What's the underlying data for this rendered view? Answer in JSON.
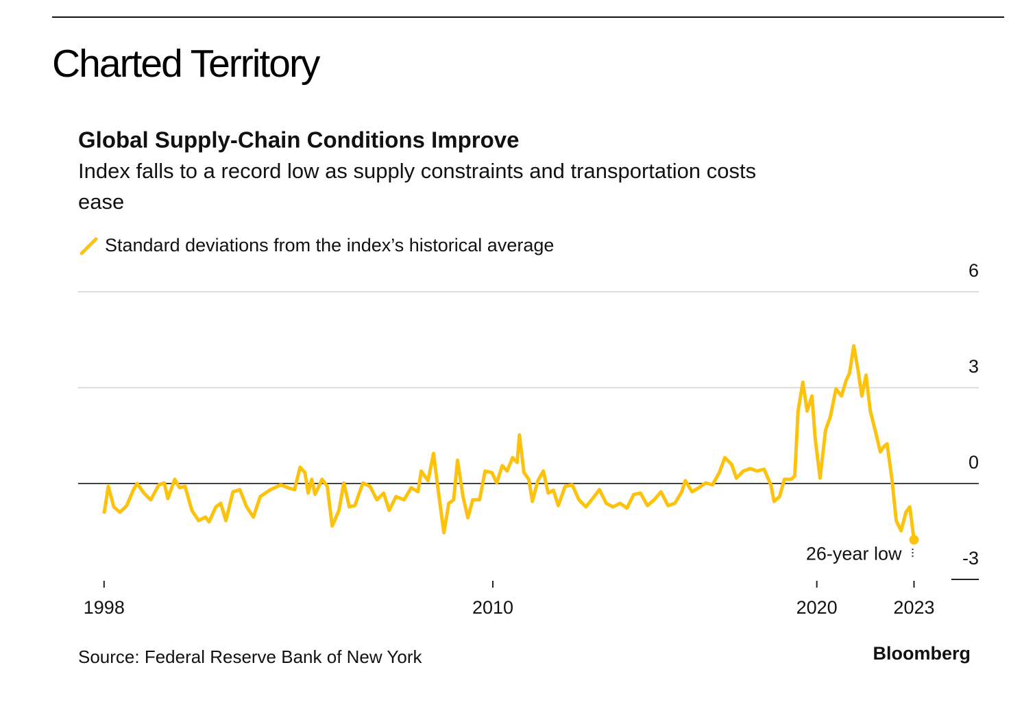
{
  "header": {
    "title": "Charted Territory"
  },
  "chart_data": {
    "type": "line",
    "title": "Global Supply-Chain Conditions Improve",
    "subtitle": [
      "Index falls to a record low as supply constraints and transportation costs",
      "ease"
    ],
    "source": "Source: Federal Reserve Bank of New York",
    "brand": "Bloomberg",
    "annotation": "26-year low",
    "xlim": [
      1997.2,
      2025
    ],
    "xticks": [
      1998,
      2010,
      2020,
      2023
    ],
    "ylim": [
      -3,
      6
    ],
    "yticks": [
      -3,
      0,
      3,
      6
    ],
    "grid": true,
    "series": [
      {
        "name": "Standard deviations from the index’s historical average",
        "color": "#fcc20c",
        "x": [
          1998.0,
          1998.13,
          1998.3,
          1998.49,
          1998.7,
          1998.91,
          1999.02,
          1999.23,
          1999.44,
          1999.69,
          1999.86,
          1999.97,
          2000.18,
          2000.33,
          2000.5,
          2000.71,
          2000.92,
          2001.13,
          2001.24,
          2001.45,
          2001.6,
          2001.76,
          2001.98,
          2002.19,
          2002.4,
          2002.61,
          2002.82,
          2003.14,
          2003.46,
          2003.67,
          2003.88,
          2004.05,
          2004.2,
          2004.3,
          2004.41,
          2004.51,
          2004.73,
          2004.89,
          2005.04,
          2005.25,
          2005.4,
          2005.57,
          2005.74,
          2005.99,
          2006.21,
          2006.42,
          2006.63,
          2006.8,
          2007.01,
          2007.26,
          2007.48,
          2007.69,
          2007.79,
          2008.0,
          2008.17,
          2008.32,
          2008.49,
          2008.64,
          2008.79,
          2008.91,
          2009.08,
          2009.23,
          2009.38,
          2009.59,
          2009.76,
          2009.97,
          2010.12,
          2010.29,
          2010.44,
          2010.61,
          2010.75,
          2010.82,
          2010.96,
          2011.11,
          2011.22,
          2011.39,
          2011.56,
          2011.71,
          2011.87,
          2012.02,
          2012.23,
          2012.45,
          2012.66,
          2012.87,
          2013.08,
          2013.29,
          2013.5,
          2013.71,
          2013.93,
          2014.14,
          2014.35,
          2014.56,
          2014.77,
          2014.98,
          2015.19,
          2015.41,
          2015.62,
          2015.83,
          2015.94,
          2016.15,
          2016.36,
          2016.57,
          2016.78,
          2016.99,
          2017.16,
          2017.37,
          2017.52,
          2017.73,
          2017.94,
          2018.16,
          2018.37,
          2018.58,
          2018.68,
          2018.85,
          2019.0,
          2019.21,
          2019.32,
          2019.42,
          2019.57,
          2019.7,
          2019.85,
          2019.95,
          2020.1,
          2020.27,
          2020.42,
          2020.59,
          2020.76,
          2020.91,
          2021.01,
          2021.14,
          2021.27,
          2021.39,
          2021.52,
          2021.65,
          2021.81,
          2021.96,
          2022.07,
          2022.17,
          2022.32,
          2022.45,
          2022.6,
          2022.75,
          2022.87,
          2023.0
        ],
        "values": [
          -0.94,
          -0.09,
          -0.73,
          -0.9,
          -0.69,
          -0.19,
          0,
          -0.3,
          -0.51,
          -0.04,
          0.02,
          -0.47,
          0.13,
          -0.13,
          -0.09,
          -0.84,
          -1.16,
          -1.05,
          -1.2,
          -0.73,
          -0.62,
          -1.16,
          -0.26,
          -0.19,
          -0.73,
          -1.05,
          -0.41,
          -0.19,
          -0.04,
          -0.13,
          -0.19,
          0.51,
          0.34,
          -0.3,
          0.13,
          -0.34,
          0.13,
          -0.09,
          -1.33,
          -0.84,
          0.02,
          -0.73,
          -0.69,
          0.02,
          -0.09,
          -0.51,
          -0.3,
          -0.84,
          -0.41,
          -0.51,
          -0.13,
          -0.26,
          0.39,
          0.09,
          0.94,
          -0.26,
          -1.54,
          -0.62,
          -0.51,
          0.73,
          -0.41,
          -1.07,
          -0.51,
          -0.51,
          0.39,
          0.34,
          0.02,
          0.56,
          0.39,
          0.81,
          0.66,
          1.52,
          0.34,
          0.13,
          -0.56,
          0.09,
          0.39,
          -0.3,
          -0.21,
          -0.69,
          -0.09,
          -0.04,
          -0.51,
          -0.73,
          -0.47,
          -0.19,
          -0.62,
          -0.73,
          -0.62,
          -0.77,
          -0.34,
          -0.3,
          -0.69,
          -0.51,
          -0.26,
          -0.69,
          -0.62,
          -0.26,
          0.09,
          -0.26,
          -0.13,
          0.02,
          -0.04,
          0.34,
          0.81,
          0.6,
          0.17,
          0.39,
          0.47,
          0.39,
          0.45,
          -0.04,
          -0.56,
          -0.41,
          0.13,
          0.13,
          0.24,
          2.27,
          3.17,
          2.27,
          2.74,
          1.41,
          0.17,
          1.67,
          2.1,
          2.96,
          2.74,
          3.24,
          3.45,
          4.31,
          3.56,
          2.74,
          3.39,
          2.27,
          1.63,
          0.99,
          1.16,
          1.24,
          0.13,
          -1.16,
          -1.48,
          -0.9,
          -0.73,
          -1.76
        ]
      }
    ]
  }
}
